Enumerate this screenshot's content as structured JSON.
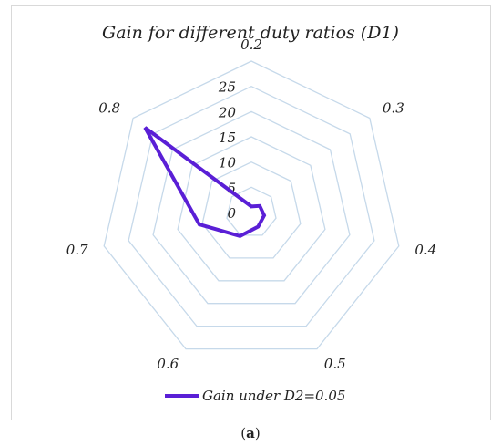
{
  "chart_data": {
    "type": "radar",
    "title": "Gain for different duty ratios (D1)",
    "categories": [
      "0.2",
      "0.3",
      "0.4",
      "0.5",
      "0.6",
      "0.7",
      "0.8"
    ],
    "radial_ticks": [
      "0",
      "5",
      "10",
      "15",
      "20",
      "25"
    ],
    "rlim": [
      0,
      25
    ],
    "grid": true,
    "legend_position": "bottom",
    "series": [
      {
        "name": "Gain under D2=0.05",
        "values": [
          1.2,
          2.1,
          2.6,
          3.1,
          5.2,
          10.6,
          27.0
        ],
        "color": "#5a1fd6"
      }
    ],
    "grid_color": "#c6d9ea"
  },
  "caption": {
    "open": "(",
    "letter": "a",
    "close": ")"
  }
}
